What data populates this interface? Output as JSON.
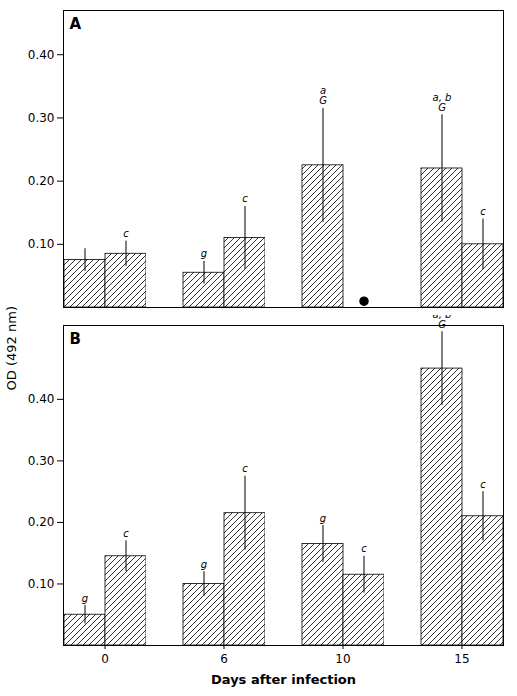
{
  "chart_data": [
    {
      "type": "bar",
      "title": "A",
      "ylabel": "OD (492 nm)",
      "categories": [
        "0",
        "6",
        "10",
        "15"
      ],
      "series": [
        {
          "color": "white",
          "values": [
            0.075,
            0.055,
            0.225,
            0.22
          ],
          "errors": [
            0.018,
            0.018,
            0.09,
            0.085
          ],
          "annotations": [
            null,
            "g",
            "a\nG",
            "a, b\nG"
          ]
        },
        {
          "color": "white",
          "values": [
            0.085,
            0.11,
            null,
            0.1
          ],
          "errors": [
            0.02,
            0.05,
            null,
            0.04
          ],
          "annotations": [
            "c",
            "c",
            null,
            "c"
          ],
          "marker": "circle",
          "missing_markers": [
            null,
            null,
            0.01,
            null
          ]
        }
      ],
      "ylim": [
        0,
        0.47
      ],
      "yticks": [
        0.1,
        0.2,
        0.3,
        0.4
      ],
      "grid": false,
      "tick_labels": "y"
    },
    {
      "type": "bar",
      "title": "B",
      "xlabel": "Days after infection",
      "categories": [
        "0",
        "6",
        "10",
        "15"
      ],
      "series": [
        {
          "color": "white",
          "values": [
            0.05,
            0.1,
            0.165,
            0.45
          ],
          "errors": [
            0.015,
            0.02,
            0.03,
            0.06
          ],
          "annotations": [
            "g",
            "g",
            "g",
            "a, b\nG"
          ]
        },
        {
          "color": "white",
          "values": [
            0.145,
            0.215,
            0.115,
            0.21
          ],
          "errors": [
            0.025,
            0.06,
            0.03,
            0.04
          ],
          "annotations": [
            "c",
            "c",
            "c",
            "c"
          ]
        }
      ],
      "ylim": [
        0,
        0.52
      ],
      "yticks": [
        0.1,
        0.2,
        0.3,
        0.4
      ],
      "grid": false
    }
  ]
}
